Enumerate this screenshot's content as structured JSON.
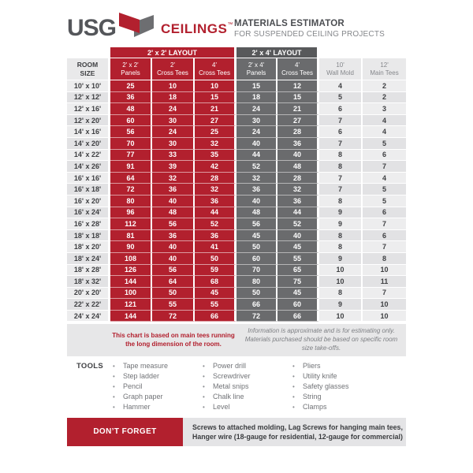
{
  "header": {
    "brand": "USG",
    "product": "CEILINGS",
    "trademark": "™",
    "title": "MATERIALS ESTIMATOR",
    "subtitle": "FOR SUSPENDED CEILING PROJECTS"
  },
  "table": {
    "groups": [
      {
        "label": "2' x 2' LAYOUT"
      },
      {
        "label": "2' x 4' LAYOUT"
      }
    ],
    "room_header": {
      "line1": "ROOM",
      "line2": "SIZE"
    },
    "columns": [
      {
        "line1": "2' x 2'",
        "line2": "Panels"
      },
      {
        "line1": "2'",
        "line2": "Cross Tees"
      },
      {
        "line1": "4'",
        "line2": "Cross Tees"
      },
      {
        "line1": "2' x 4'",
        "line2": "Panels"
      },
      {
        "line1": "4'",
        "line2": "Cross Tees"
      },
      {
        "line1": "10'",
        "line2": "Wall Mold"
      },
      {
        "line1": "12'",
        "line2": "Main Tees"
      }
    ],
    "rows": [
      {
        "room": "10' x 10'",
        "values": [
          25,
          10,
          10,
          15,
          12,
          4,
          2
        ]
      },
      {
        "room": "12' x 12'",
        "values": [
          36,
          18,
          15,
          18,
          15,
          5,
          2
        ]
      },
      {
        "room": "12' x 16'",
        "values": [
          48,
          24,
          21,
          24,
          21,
          6,
          3
        ]
      },
      {
        "room": "12' x 20'",
        "values": [
          60,
          30,
          27,
          30,
          27,
          7,
          4
        ]
      },
      {
        "room": "14' x 16'",
        "values": [
          56,
          24,
          25,
          24,
          28,
          6,
          4
        ]
      },
      {
        "room": "14' x 20'",
        "values": [
          70,
          30,
          32,
          40,
          36,
          7,
          5
        ]
      },
      {
        "room": "14' x 22'",
        "values": [
          77,
          33,
          35,
          44,
          40,
          8,
          6
        ]
      },
      {
        "room": "14' x 26'",
        "values": [
          91,
          39,
          42,
          52,
          48,
          8,
          7
        ]
      },
      {
        "room": "16' x 16'",
        "values": [
          64,
          32,
          28,
          32,
          28,
          7,
          4
        ]
      },
      {
        "room": "16' x 18'",
        "values": [
          72,
          36,
          32,
          36,
          32,
          7,
          5
        ]
      },
      {
        "room": "16' x 20'",
        "values": [
          80,
          40,
          36,
          40,
          36,
          8,
          5
        ]
      },
      {
        "room": "16' x 24'",
        "values": [
          96,
          48,
          44,
          48,
          44,
          9,
          6
        ]
      },
      {
        "room": "16' x 28'",
        "values": [
          112,
          56,
          52,
          56,
          52,
          9,
          7
        ]
      },
      {
        "room": "18' x 18'",
        "values": [
          81,
          36,
          36,
          45,
          40,
          8,
          6
        ]
      },
      {
        "room": "18' x 20'",
        "values": [
          90,
          40,
          41,
          50,
          45,
          8,
          7
        ]
      },
      {
        "room": "18' x 24'",
        "values": [
          108,
          40,
          50,
          60,
          55,
          9,
          8
        ]
      },
      {
        "room": "18' x 28'",
        "values": [
          126,
          56,
          59,
          70,
          65,
          10,
          10
        ]
      },
      {
        "room": "18' x 32'",
        "values": [
          144,
          64,
          68,
          80,
          75,
          10,
          11
        ]
      },
      {
        "room": "20' x 20'",
        "values": [
          100,
          50,
          45,
          50,
          45,
          8,
          7
        ]
      },
      {
        "room": "22' x 22'",
        "values": [
          121,
          55,
          55,
          66,
          60,
          9,
          10
        ]
      },
      {
        "room": "24' x 24'",
        "values": [
          144,
          72,
          66,
          72,
          66,
          10,
          10
        ]
      }
    ]
  },
  "notes": {
    "left": "This chart is based on main tees running the long dimension of the room.",
    "right": "Information is approximate and is for estimating only. Materials purchased should be based on specific room size take-offs."
  },
  "tools": {
    "label": "TOOLS",
    "bullet": "•",
    "columns": [
      [
        "Tape measure",
        "Step ladder",
        "Pencil",
        "Graph paper",
        "Hammer"
      ],
      [
        "Power drill",
        "Screwdriver",
        "Metal snips",
        "Chalk line",
        "Level"
      ],
      [
        "Pliers",
        "Utility knife",
        "Safety glasses",
        "String",
        "Clamps"
      ]
    ]
  },
  "dont_forget": {
    "label": "DON’T FORGET",
    "line1": "Screws to attached molding, Lag Screws for hanging main tees,",
    "line2": "Hanger wire (18-gauge for residential, 12-gauge for commercial)"
  },
  "colors": {
    "red": "#B2202E",
    "darkband": "#58595B",
    "darkcell": "#6A6B6D",
    "lightheader": "#E9E9EA",
    "rowlight": "#EDEDEE",
    "rowdark": "#E2E2E4",
    "textdark": "#3F4043",
    "textgray": "#85878B"
  }
}
